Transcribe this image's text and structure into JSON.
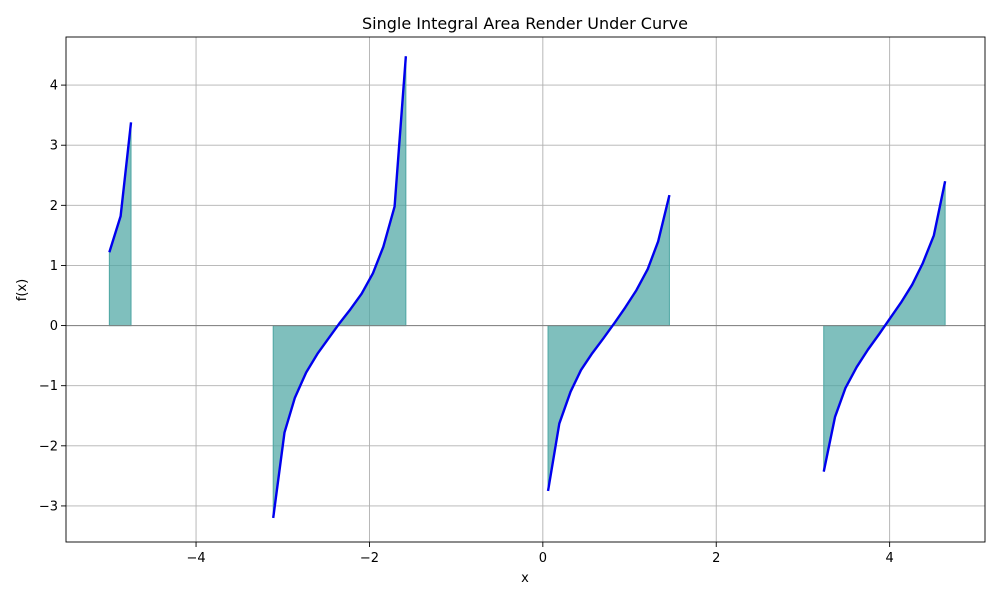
{
  "chart_data": {
    "type": "area",
    "title": "Single Integral Area Render Under Curve",
    "xlabel": "x",
    "ylabel": "f(x)",
    "xlim": [
      -5.5,
      5.1
    ],
    "ylim": [
      -3.6,
      4.8
    ],
    "grid": true,
    "x_ticks": [
      -4,
      -2,
      0,
      2,
      4
    ],
    "x_tick_labels": [
      "−4",
      "−2",
      "0",
      "2",
      "4"
    ],
    "y_ticks": [
      -3,
      -2,
      -1,
      0,
      1,
      2,
      3,
      4
    ],
    "y_tick_labels": [
      "−3",
      "−2",
      "−1",
      "0",
      "1",
      "2",
      "3",
      "4"
    ],
    "colors": {
      "curve": "#0000ee",
      "fill": "#4da6a3",
      "zero_line": "#808080",
      "grid": "#b0b0b0"
    },
    "series": [
      {
        "x": [
          -5.0,
          -4.87,
          -4.75
        ],
        "y": [
          1.22,
          1.82,
          3.38
        ]
      },
      {
        "x": [
          -3.11,
          -2.98,
          -2.86,
          -2.73,
          -2.6,
          -2.47,
          -2.35,
          -2.22,
          -2.09,
          -1.96,
          -1.84,
          -1.71,
          -1.58
        ],
        "y": [
          -3.2,
          -1.78,
          -1.2,
          -0.78,
          -0.47,
          -0.21,
          0.03,
          0.27,
          0.53,
          0.87,
          1.31,
          1.98,
          4.48
        ]
      },
      {
        "x": [
          0.06,
          0.19,
          0.32,
          0.44,
          0.57,
          0.7,
          0.83,
          0.95,
          1.08,
          1.21,
          1.33,
          1.46
        ],
        "y": [
          -2.75,
          -1.63,
          -1.1,
          -0.74,
          -0.46,
          -0.21,
          0.05,
          0.3,
          0.59,
          0.94,
          1.4,
          2.17
        ]
      },
      {
        "x": [
          3.24,
          3.37,
          3.49,
          3.62,
          3.75,
          3.88,
          4.0,
          4.13,
          4.26,
          4.38,
          4.51,
          4.64
        ],
        "y": [
          -2.43,
          -1.52,
          -1.04,
          -0.69,
          -0.4,
          -0.14,
          0.11,
          0.38,
          0.68,
          1.03,
          1.5,
          2.4
        ]
      }
    ]
  }
}
